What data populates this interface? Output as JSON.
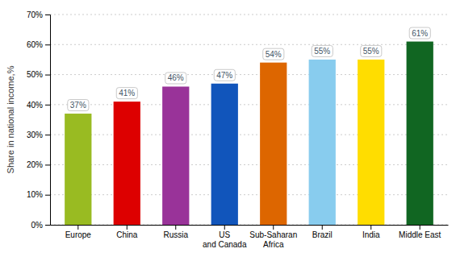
{
  "chart_data": {
    "type": "bar",
    "categories": [
      "Europe",
      "China",
      "Russia",
      "US\nand Canada",
      "Sub-Saharan\nAfrica",
      "Brazil",
      "India",
      "Middle East"
    ],
    "values": [
      37,
      41,
      46,
      47,
      54,
      55,
      55,
      61
    ],
    "value_labels": [
      "37%",
      "41%",
      "46%",
      "47%",
      "54%",
      "55%",
      "55%",
      "61%"
    ],
    "colors": [
      "#99bb22",
      "#dd0000",
      "#993399",
      "#1155bb",
      "#dd6600",
      "#88ccee",
      "#ffdd00",
      "#116622"
    ],
    "ylabel": "Share in national income,%",
    "ylim": [
      0,
      70
    ],
    "yticks": [
      {
        "value": 0,
        "label": "0%"
      },
      {
        "value": 10,
        "label": "10%"
      },
      {
        "value": 20,
        "label": "20%"
      },
      {
        "value": 30,
        "label": "30%"
      },
      {
        "value": 40,
        "label": "40%"
      },
      {
        "value": 50,
        "label": "50%"
      },
      {
        "value": 60,
        "label": "60%"
      },
      {
        "value": 70,
        "label": "70%"
      }
    ],
    "grid": true,
    "data_labels": true
  }
}
